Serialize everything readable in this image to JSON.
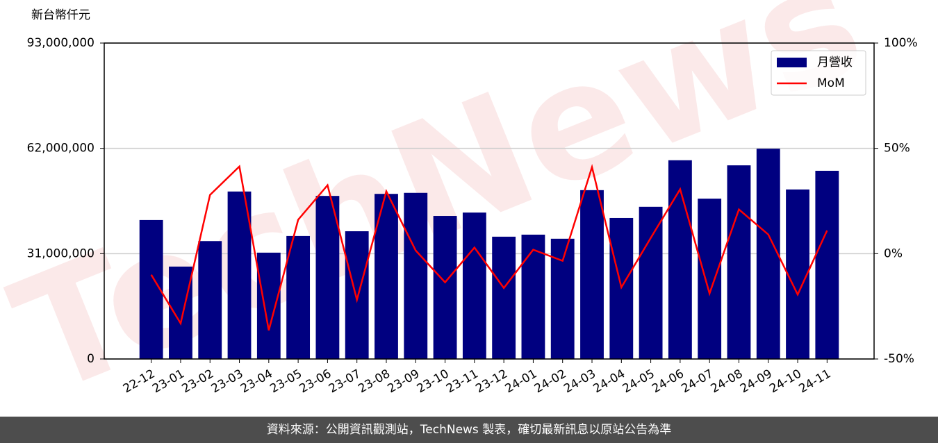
{
  "chart_data": {
    "type": "bar-line",
    "y_axis_title": "新台幣仟元",
    "watermark": "TechNews",
    "categories": [
      "22-12",
      "23-01",
      "23-02",
      "23-03",
      "23-04",
      "23-05",
      "23-06",
      "23-07",
      "23-08",
      "23-09",
      "23-10",
      "23-11",
      "23-12",
      "24-01",
      "24-02",
      "24-03",
      "24-04",
      "24-05",
      "24-06",
      "24-07",
      "24-08",
      "24-09",
      "24-10",
      "24-11"
    ],
    "series": [
      {
        "name": "月營收",
        "type": "bar",
        "color": "#000080",
        "values": [
          40900000,
          27200000,
          34700000,
          49300000,
          31300000,
          36200000,
          48000000,
          37600000,
          48600000,
          48900000,
          42100000,
          43100000,
          36000000,
          36600000,
          35400000,
          49700000,
          41500000,
          44800000,
          58500000,
          47200000,
          57000000,
          61900000,
          49900000,
          55400000
        ]
      },
      {
        "name": "MoM",
        "type": "line",
        "axis": "y2",
        "color": "#ff0000",
        "values": [
          -10.0,
          -33.1,
          27.9,
          41.4,
          -36.4,
          16.1,
          32.5,
          -21.9,
          29.6,
          1.5,
          -13.6,
          2.9,
          -16.3,
          1.9,
          -3.4,
          41.1,
          -16.0,
          7.5,
          30.6,
          -18.9,
          21.0,
          9.1,
          -19.4,
          11.0
        ]
      }
    ],
    "ylim": [
      0,
      93000000
    ],
    "yticks": [
      {
        "value": 0,
        "label": "0"
      },
      {
        "value": 31000000,
        "label": "31,000,000"
      },
      {
        "value": 62000000,
        "label": "62,000,000"
      },
      {
        "value": 93000000,
        "label": "93,000,000"
      }
    ],
    "y2lim": [
      -50,
      100
    ],
    "y2ticks": [
      {
        "value": -50,
        "label": "-50%"
      },
      {
        "value": 0,
        "label": "0%"
      },
      {
        "value": 50,
        "label": "50%"
      },
      {
        "value": 100,
        "label": "100%"
      }
    ],
    "grid": true,
    "legend": "upper right"
  },
  "footer": "資料來源：公開資訊觀測站，TechNews 製表，確切最新訊息以原站公告為準"
}
